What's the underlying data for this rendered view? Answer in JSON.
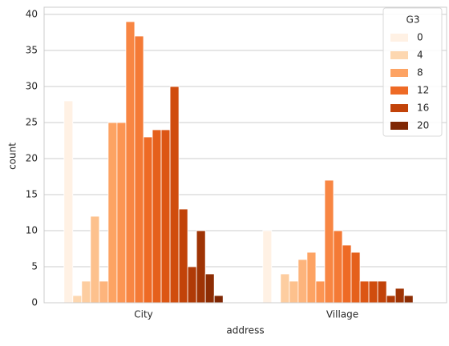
{
  "chart_data": {
    "type": "bar",
    "x_label": "address",
    "y_label": "count",
    "categories": [
      "City",
      "Village"
    ],
    "series": [
      {
        "color": "#fff1e4",
        "values": [
          28,
          10
        ]
      },
      {
        "color": "#fdd7b0",
        "values": [
          1,
          0
        ]
      },
      {
        "color": "#fdcda0",
        "values": [
          3,
          4
        ]
      },
      {
        "color": "#fdc18d",
        "values": [
          12,
          3
        ]
      },
      {
        "color": "#fdb47c",
        "values": [
          3,
          6
        ]
      },
      {
        "color": "#fda363",
        "values": [
          25,
          7
        ]
      },
      {
        "color": "#fc9553",
        "values": [
          25,
          3
        ]
      },
      {
        "color": "#f88643",
        "values": [
          39,
          17
        ]
      },
      {
        "color": "#f47a36",
        "values": [
          37,
          10
        ]
      },
      {
        "color": "#ee6a25",
        "values": [
          23,
          8
        ]
      },
      {
        "color": "#e5601c",
        "values": [
          24,
          7
        ]
      },
      {
        "color": "#dc5614",
        "values": [
          24,
          3
        ]
      },
      {
        "color": "#d04d0e",
        "values": [
          30,
          3
        ]
      },
      {
        "color": "#c24309",
        "values": [
          13,
          3
        ]
      },
      {
        "color": "#b03a06",
        "values": [
          5,
          1
        ]
      },
      {
        "color": "#9f3405",
        "values": [
          10,
          2
        ]
      },
      {
        "color": "#8d2d04",
        "values": [
          4,
          1
        ]
      },
      {
        "color": "#7f2704",
        "values": [
          1,
          0
        ]
      }
    ],
    "legend": {
      "title": "G3",
      "position": "upper right",
      "entries": [
        {
          "label": "0",
          "color": "#fff1e4"
        },
        {
          "label": "4",
          "color": "#fdd7b0"
        },
        {
          "label": "8",
          "color": "#fda363"
        },
        {
          "label": "12",
          "color": "#ee6a25"
        },
        {
          "label": "16",
          "color": "#c24309"
        },
        {
          "label": "20",
          "color": "#7f2704"
        }
      ]
    },
    "ylim": [
      0,
      41
    ],
    "yticks": [
      0,
      5,
      10,
      15,
      20,
      25,
      30,
      35,
      40
    ],
    "grid": true
  }
}
